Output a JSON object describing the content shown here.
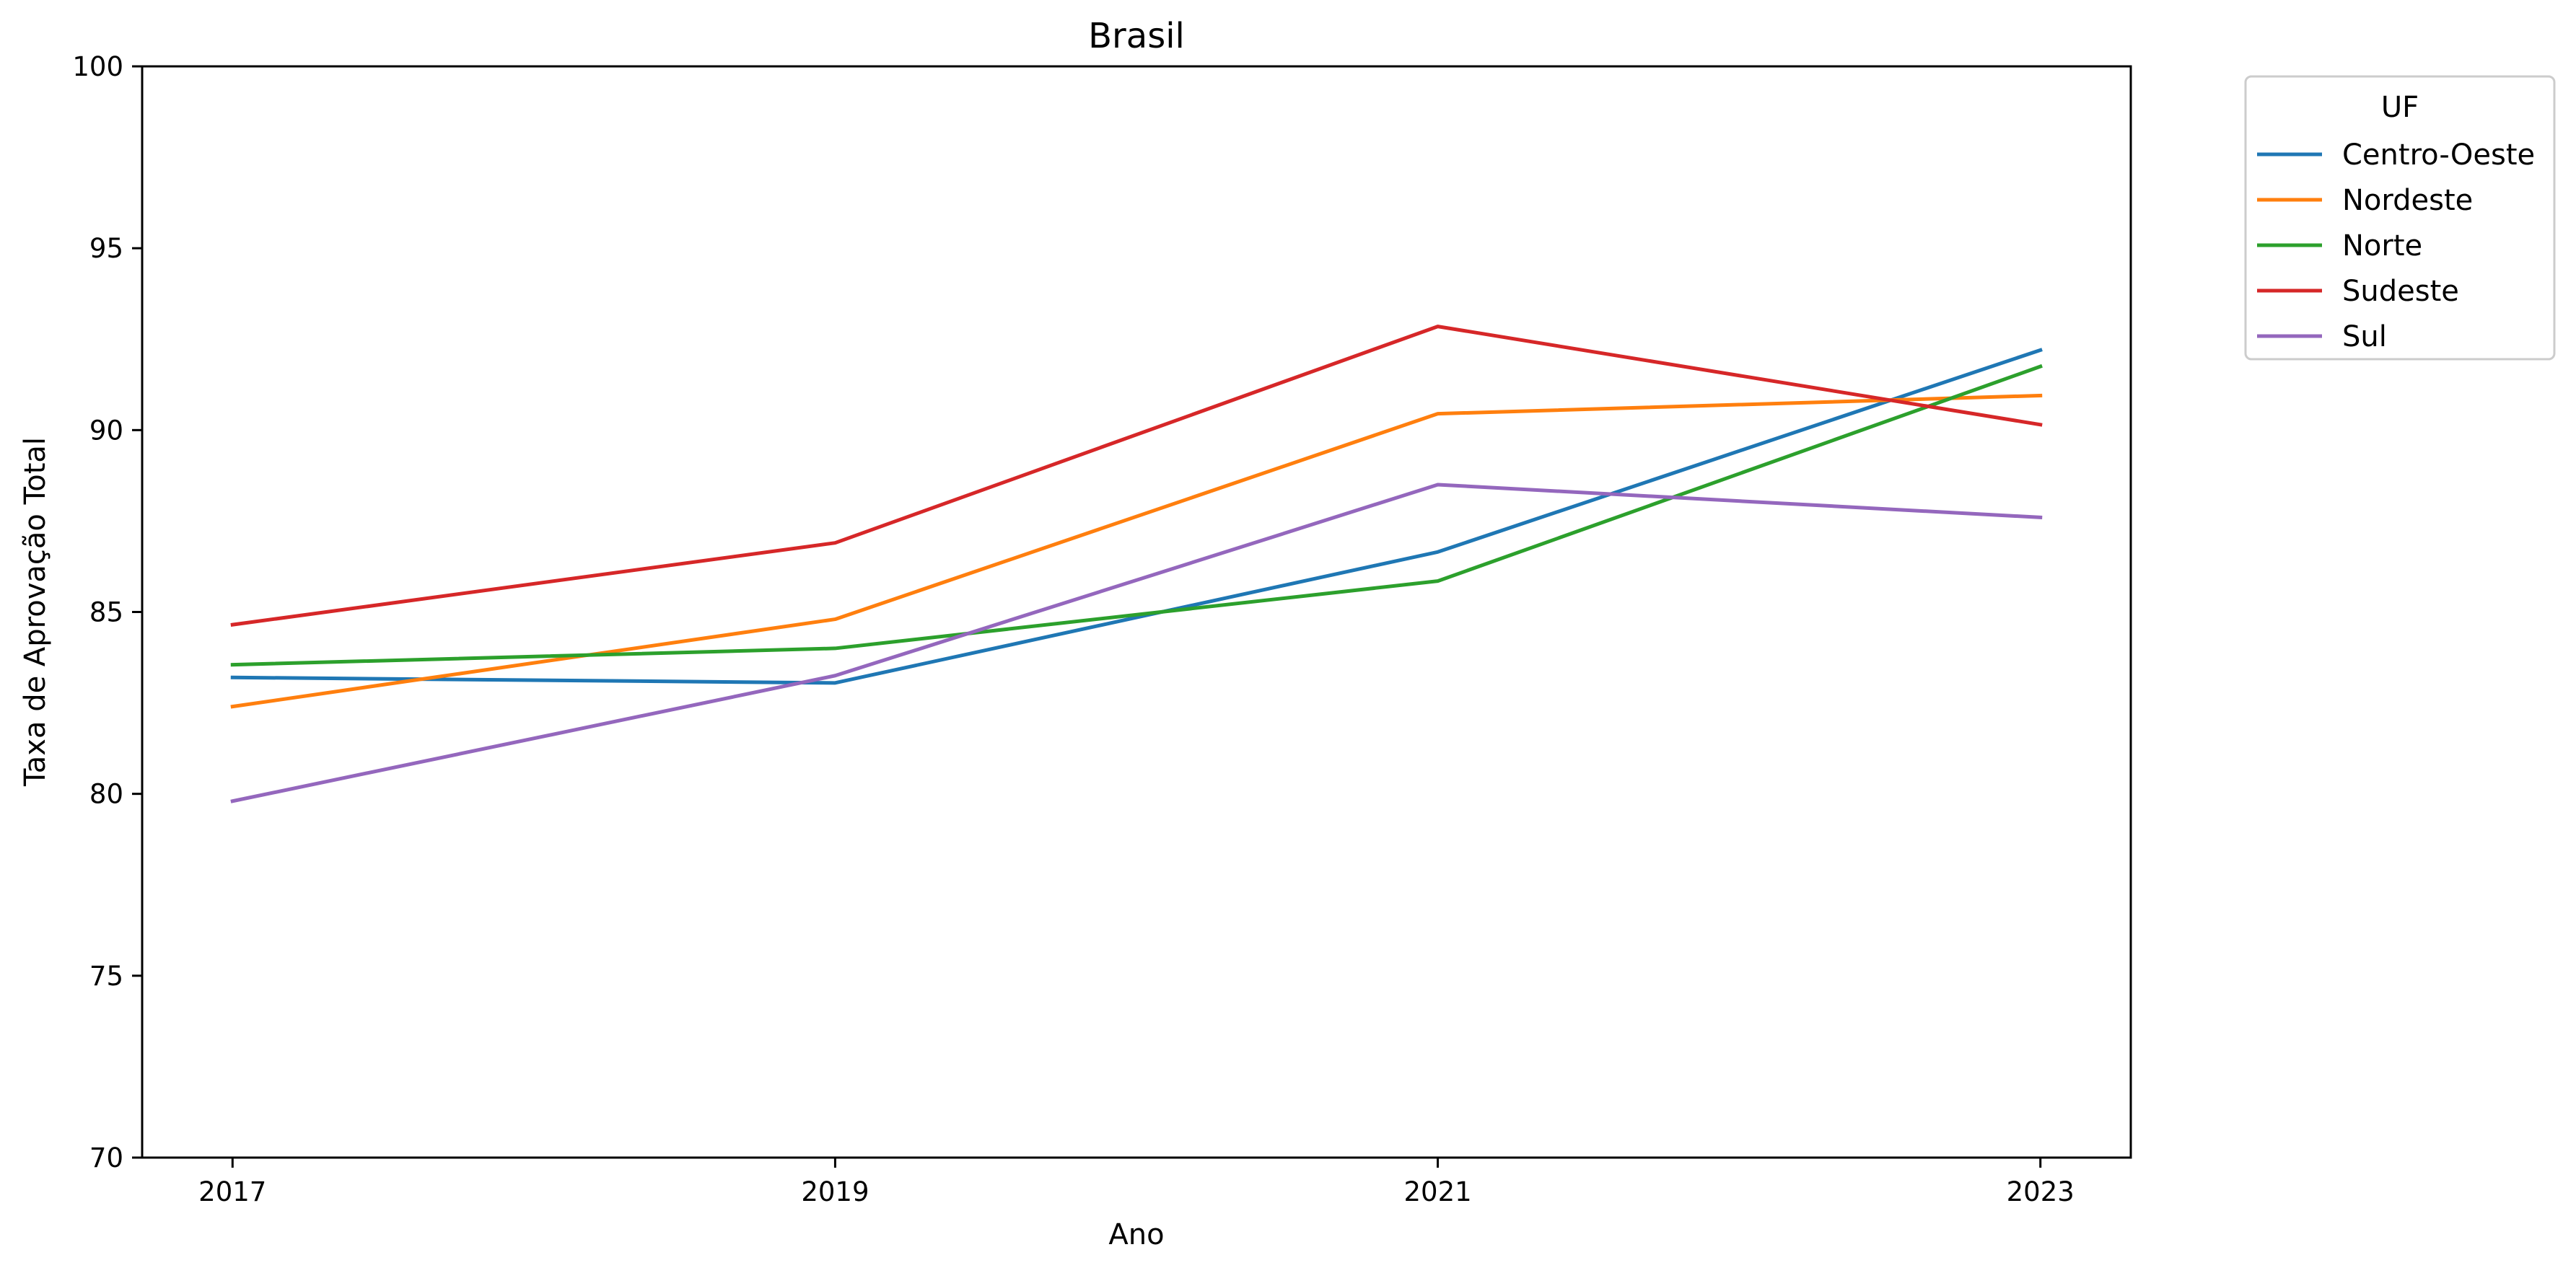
{
  "chart_data": {
    "type": "line",
    "title": "Brasil",
    "xlabel": "Ano",
    "ylabel": "Taxa de Aprovação Total",
    "x": [
      2017,
      2019,
      2021,
      2023
    ],
    "xticks": [
      "2017",
      "2019",
      "2021",
      "2023"
    ],
    "ylim": [
      70,
      100
    ],
    "yticks": [
      "70",
      "75",
      "80",
      "85",
      "90",
      "95",
      "100"
    ],
    "grid": false,
    "legend": {
      "title": "UF",
      "placement": "outside upper right"
    },
    "series": [
      {
        "name": "Centro-Oeste",
        "color": "#1f77b4",
        "values": [
          83.2,
          83.05,
          86.65,
          92.2
        ]
      },
      {
        "name": "Nordeste",
        "color": "#ff7f0e",
        "values": [
          82.4,
          84.8,
          90.45,
          90.95
        ]
      },
      {
        "name": "Norte",
        "color": "#2ca02c",
        "values": [
          83.55,
          84.0,
          85.85,
          91.75
        ]
      },
      {
        "name": "Sudeste",
        "color": "#d62728",
        "values": [
          84.65,
          86.9,
          92.85,
          90.15
        ]
      },
      {
        "name": "Sul",
        "color": "#9467bd",
        "values": [
          79.8,
          83.25,
          88.5,
          87.6
        ]
      }
    ]
  }
}
